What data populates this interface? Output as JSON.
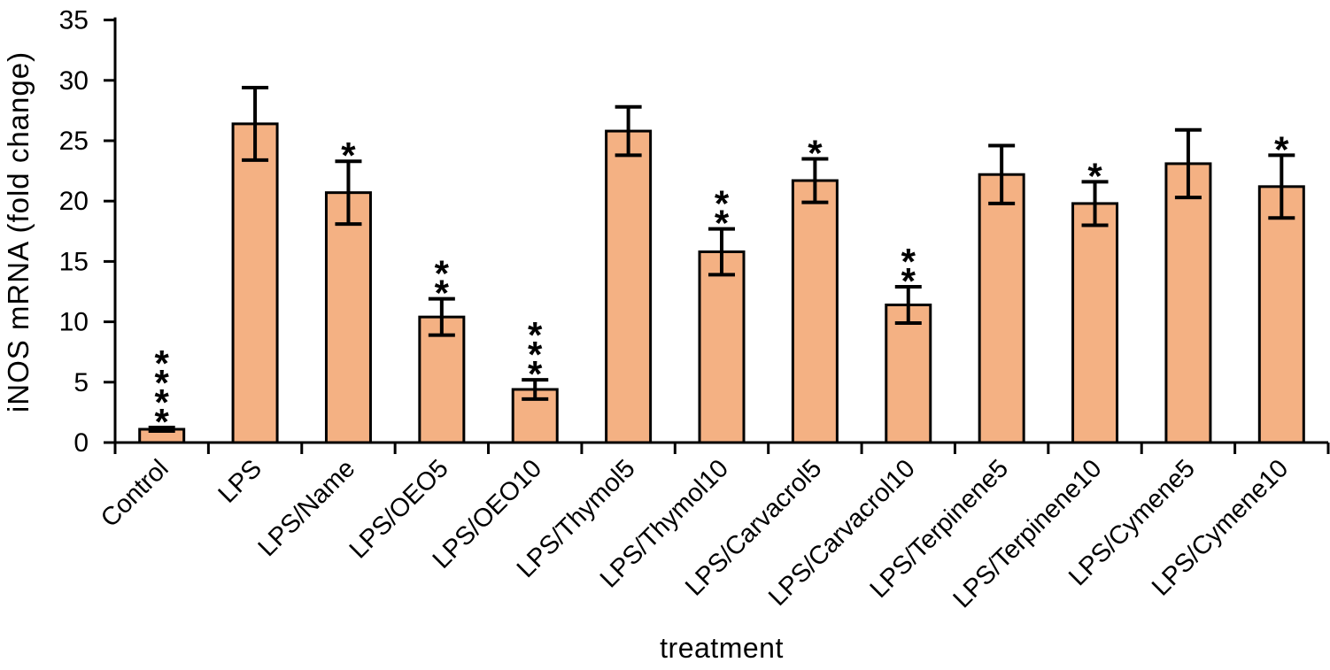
{
  "chart_data": {
    "type": "bar",
    "title": "",
    "xlabel": "treatment",
    "ylabel": "iNOS mRNA (fold change)",
    "ylim": [
      0,
      35
    ],
    "yticks": [
      0,
      5,
      10,
      15,
      20,
      25,
      30,
      35
    ],
    "grid": false,
    "legend": "none",
    "bar_color": "#F4B183",
    "bar_border_color": "#000000",
    "error_bar_color": "#000000",
    "significance_color": "#A6A6A6",
    "categories": [
      "Control",
      "LPS",
      "LPS/Name",
      "LPS/OEO5",
      "LPS/OEO10",
      "LPS/Thymol5",
      "LPS/Thymol10",
      "LPS/Carvacrol5",
      "LPS/Carvacrol10",
      "LPS/Terpinene5",
      "LPS/Terpinene10",
      "LPS/Cymene5",
      "LPS/Cymene10"
    ],
    "values": [
      1.1,
      26.4,
      20.7,
      10.4,
      4.4,
      25.8,
      15.8,
      21.7,
      11.4,
      22.2,
      19.8,
      23.1,
      21.2
    ],
    "errors": [
      0.15,
      3.0,
      2.6,
      1.5,
      0.8,
      2.0,
      1.9,
      1.8,
      1.5,
      2.4,
      1.8,
      2.8,
      2.6
    ],
    "significance": [
      "****",
      "",
      "*",
      "**",
      "***",
      "",
      "**",
      "*",
      "**",
      "",
      "*",
      "",
      "*"
    ]
  }
}
